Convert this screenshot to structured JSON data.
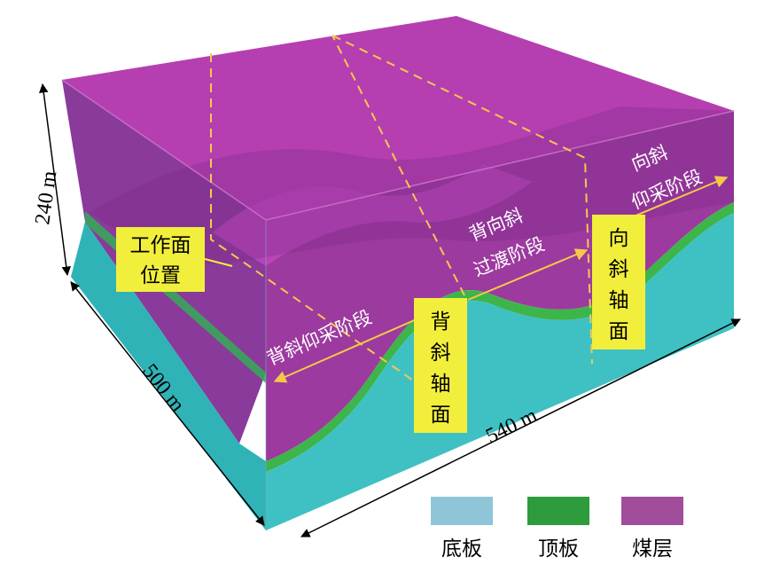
{
  "dimensions": {
    "height": "240 m",
    "depth": "500 m",
    "width": "540 m"
  },
  "boxes": {
    "workface": [
      "工作面",
      "位置"
    ],
    "anticline_axis": [
      "背",
      "斜",
      "轴",
      "面"
    ],
    "syncline_axis": [
      "向",
      "斜",
      "轴",
      "面"
    ]
  },
  "stages": {
    "anticline_mining": "背斜仰采阶段",
    "transition": [
      "背向斜",
      "过渡阶段"
    ],
    "syncline_mining": [
      "向斜",
      "仰采阶段"
    ]
  },
  "legend": [
    {
      "label": "底板",
      "color": "#8ec6d8"
    },
    {
      "label": "顶板",
      "color": "#2e9c3c"
    },
    {
      "label": "煤层",
      "color": "#a24d9c"
    }
  ],
  "colors": {
    "coal": "#a03ca0",
    "coal_top": "#b53fb1",
    "floor": "#37c0c2",
    "roof": "#3db54a",
    "highlight": "#f2ef3c",
    "dashed": "#f6c84a"
  }
}
